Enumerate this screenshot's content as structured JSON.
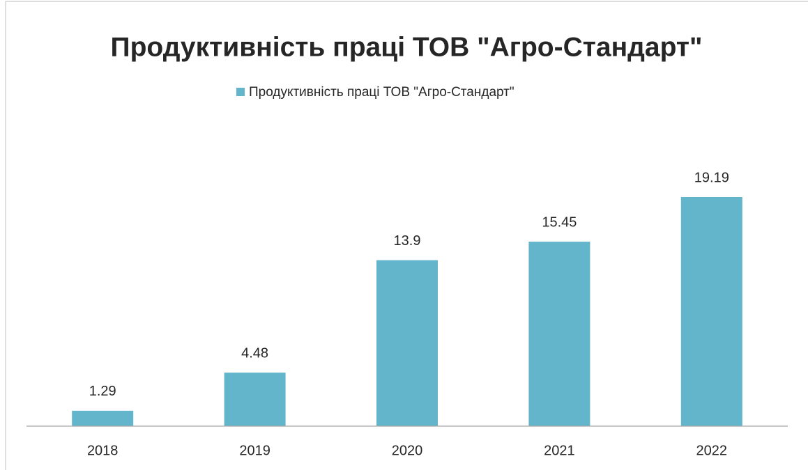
{
  "chart_data": {
    "type": "bar",
    "title": "Продуктивність праці ТОВ \"Агро-Стандарт\"",
    "categories": [
      "2018",
      "2019",
      "2020",
      "2021",
      "2022"
    ],
    "series": [
      {
        "name": "Продуктивність праці ТОВ \"Агро-Стандарт\"",
        "color": "#63b5cc",
        "values": [
          1.29,
          4.48,
          13.9,
          15.45,
          19.19
        ]
      }
    ],
    "data_labels": true,
    "legend": "top"
  }
}
